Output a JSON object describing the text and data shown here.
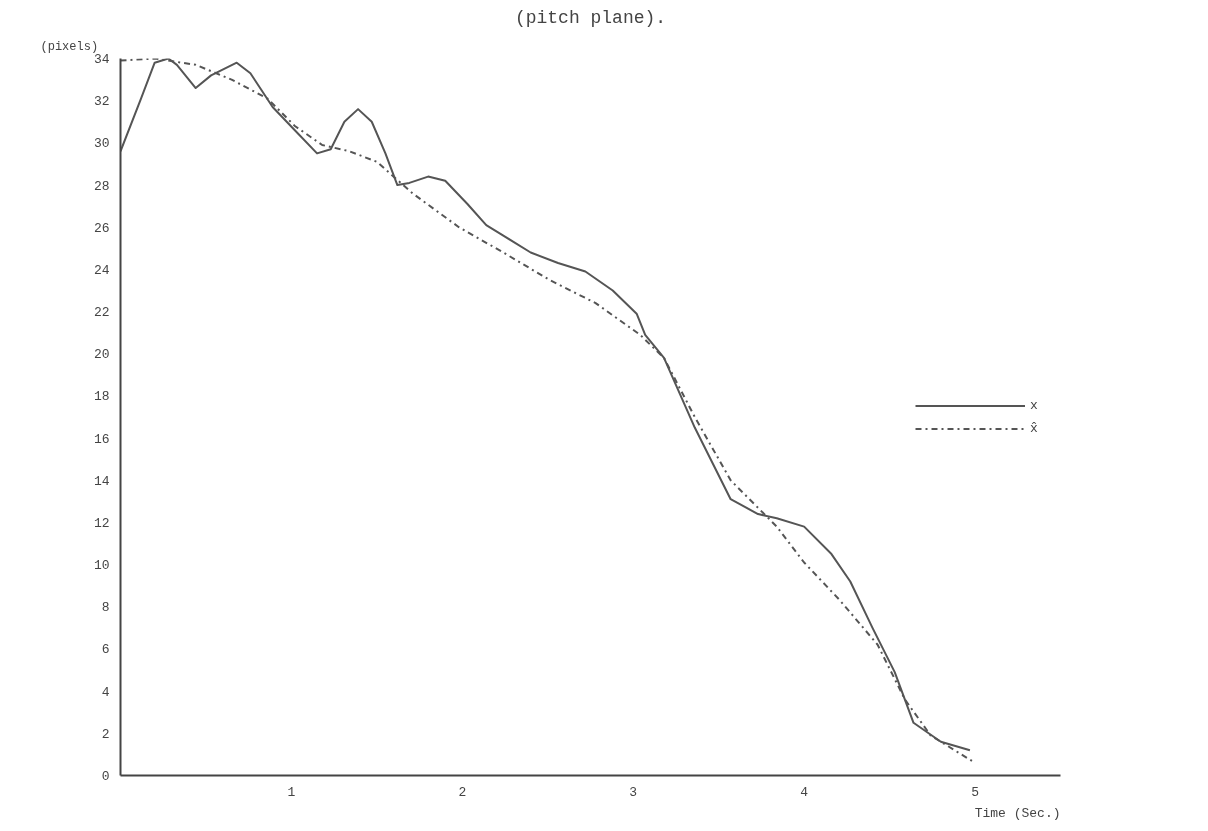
{
  "chart_data": {
    "type": "line",
    "title": "(pitch plane).",
    "xlabel": "Time (Sec.)",
    "ylabel": "(pixels)",
    "xlim": [
      0,
      5.5
    ],
    "ylim": [
      0,
      34
    ],
    "xticks": [
      1,
      2,
      3,
      4,
      5
    ],
    "yticks": [
      0,
      2,
      4,
      6,
      8,
      10,
      12,
      14,
      16,
      18,
      20,
      22,
      24,
      26,
      28,
      30,
      32,
      34
    ],
    "grid": false,
    "legend": "right",
    "series": [
      {
        "name": "x",
        "color": "#555555",
        "line_style": "solid",
        "x": [
          0,
          0.12,
          0.2,
          0.28,
          0.33,
          0.44,
          0.53,
          0.68,
          0.76,
          0.89,
          1.02,
          1.15,
          1.23,
          1.31,
          1.39,
          1.47,
          1.55,
          1.62,
          1.69,
          1.8,
          1.9,
          2.03,
          2.14,
          2.24,
          2.4,
          2.56,
          2.72,
          2.88,
          3.02,
          3.07,
          3.18,
          3.36,
          3.57,
          3.73,
          3.84,
          4.0,
          4.16,
          4.27,
          4.4,
          4.53,
          4.64,
          4.8,
          4.97
        ],
        "values": [
          29.6,
          32.1,
          33.8,
          34.0,
          33.7,
          32.6,
          33.2,
          33.8,
          33.3,
          31.7,
          30.6,
          29.5,
          29.7,
          31.0,
          31.6,
          31.0,
          29.5,
          28.0,
          28.1,
          28.4,
          28.2,
          27.1,
          26.1,
          25.6,
          24.8,
          24.3,
          23.9,
          23.0,
          21.9,
          20.9,
          19.8,
          16.5,
          13.1,
          12.4,
          12.2,
          11.8,
          10.5,
          9.2,
          7.0,
          4.9,
          2.5,
          1.6,
          1.2
        ]
      },
      {
        "name": "x̂",
        "color": "#555555",
        "line_style": "dashdot",
        "x": [
          0,
          0.2,
          0.44,
          0.65,
          0.86,
          1.02,
          1.18,
          1.34,
          1.5,
          1.71,
          1.98,
          2.24,
          2.51,
          2.78,
          3.04,
          3.18,
          3.36,
          3.57,
          3.84,
          4.0,
          4.21,
          4.43,
          4.59,
          4.74,
          5.0
        ],
        "values": [
          33.9,
          34.0,
          33.7,
          33.0,
          32.1,
          30.8,
          29.9,
          29.6,
          29.1,
          27.6,
          26.0,
          24.8,
          23.5,
          22.4,
          20.9,
          19.8,
          17.0,
          14.0,
          11.8,
          10.1,
          8.3,
          6.2,
          3.6,
          1.9,
          0.6
        ]
      }
    ]
  }
}
